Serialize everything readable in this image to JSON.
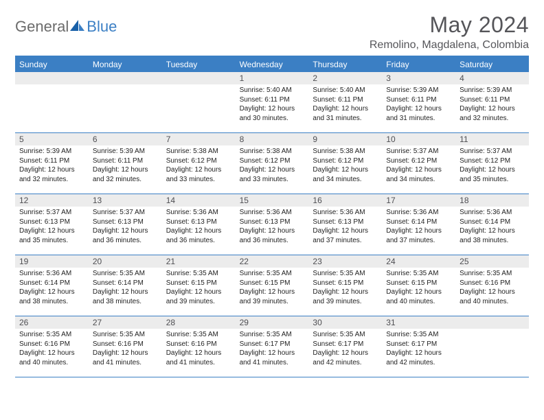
{
  "logo": {
    "text_general": "General",
    "text_blue": "Blue"
  },
  "title": "May 2024",
  "location": "Remolino, Magdalena, Colombia",
  "colors": {
    "accent": "#3b7fc4",
    "header_text": "#555559",
    "day_header_bg": "#ececec",
    "logo_gray": "#6b6b6b"
  },
  "weekdays": [
    "Sunday",
    "Monday",
    "Tuesday",
    "Wednesday",
    "Thursday",
    "Friday",
    "Saturday"
  ],
  "weeks": [
    [
      {
        "num": "",
        "sunrise": "",
        "sunset": "",
        "daylight": ""
      },
      {
        "num": "",
        "sunrise": "",
        "sunset": "",
        "daylight": ""
      },
      {
        "num": "",
        "sunrise": "",
        "sunset": "",
        "daylight": ""
      },
      {
        "num": "1",
        "sunrise": "Sunrise: 5:40 AM",
        "sunset": "Sunset: 6:11 PM",
        "daylight": "Daylight: 12 hours and 30 minutes."
      },
      {
        "num": "2",
        "sunrise": "Sunrise: 5:40 AM",
        "sunset": "Sunset: 6:11 PM",
        "daylight": "Daylight: 12 hours and 31 minutes."
      },
      {
        "num": "3",
        "sunrise": "Sunrise: 5:39 AM",
        "sunset": "Sunset: 6:11 PM",
        "daylight": "Daylight: 12 hours and 31 minutes."
      },
      {
        "num": "4",
        "sunrise": "Sunrise: 5:39 AM",
        "sunset": "Sunset: 6:11 PM",
        "daylight": "Daylight: 12 hours and 32 minutes."
      }
    ],
    [
      {
        "num": "5",
        "sunrise": "Sunrise: 5:39 AM",
        "sunset": "Sunset: 6:11 PM",
        "daylight": "Daylight: 12 hours and 32 minutes."
      },
      {
        "num": "6",
        "sunrise": "Sunrise: 5:39 AM",
        "sunset": "Sunset: 6:11 PM",
        "daylight": "Daylight: 12 hours and 32 minutes."
      },
      {
        "num": "7",
        "sunrise": "Sunrise: 5:38 AM",
        "sunset": "Sunset: 6:12 PM",
        "daylight": "Daylight: 12 hours and 33 minutes."
      },
      {
        "num": "8",
        "sunrise": "Sunrise: 5:38 AM",
        "sunset": "Sunset: 6:12 PM",
        "daylight": "Daylight: 12 hours and 33 minutes."
      },
      {
        "num": "9",
        "sunrise": "Sunrise: 5:38 AM",
        "sunset": "Sunset: 6:12 PM",
        "daylight": "Daylight: 12 hours and 34 minutes."
      },
      {
        "num": "10",
        "sunrise": "Sunrise: 5:37 AM",
        "sunset": "Sunset: 6:12 PM",
        "daylight": "Daylight: 12 hours and 34 minutes."
      },
      {
        "num": "11",
        "sunrise": "Sunrise: 5:37 AM",
        "sunset": "Sunset: 6:12 PM",
        "daylight": "Daylight: 12 hours and 35 minutes."
      }
    ],
    [
      {
        "num": "12",
        "sunrise": "Sunrise: 5:37 AM",
        "sunset": "Sunset: 6:13 PM",
        "daylight": "Daylight: 12 hours and 35 minutes."
      },
      {
        "num": "13",
        "sunrise": "Sunrise: 5:37 AM",
        "sunset": "Sunset: 6:13 PM",
        "daylight": "Daylight: 12 hours and 36 minutes."
      },
      {
        "num": "14",
        "sunrise": "Sunrise: 5:36 AM",
        "sunset": "Sunset: 6:13 PM",
        "daylight": "Daylight: 12 hours and 36 minutes."
      },
      {
        "num": "15",
        "sunrise": "Sunrise: 5:36 AM",
        "sunset": "Sunset: 6:13 PM",
        "daylight": "Daylight: 12 hours and 36 minutes."
      },
      {
        "num": "16",
        "sunrise": "Sunrise: 5:36 AM",
        "sunset": "Sunset: 6:13 PM",
        "daylight": "Daylight: 12 hours and 37 minutes."
      },
      {
        "num": "17",
        "sunrise": "Sunrise: 5:36 AM",
        "sunset": "Sunset: 6:14 PM",
        "daylight": "Daylight: 12 hours and 37 minutes."
      },
      {
        "num": "18",
        "sunrise": "Sunrise: 5:36 AM",
        "sunset": "Sunset: 6:14 PM",
        "daylight": "Daylight: 12 hours and 38 minutes."
      }
    ],
    [
      {
        "num": "19",
        "sunrise": "Sunrise: 5:36 AM",
        "sunset": "Sunset: 6:14 PM",
        "daylight": "Daylight: 12 hours and 38 minutes."
      },
      {
        "num": "20",
        "sunrise": "Sunrise: 5:35 AM",
        "sunset": "Sunset: 6:14 PM",
        "daylight": "Daylight: 12 hours and 38 minutes."
      },
      {
        "num": "21",
        "sunrise": "Sunrise: 5:35 AM",
        "sunset": "Sunset: 6:15 PM",
        "daylight": "Daylight: 12 hours and 39 minutes."
      },
      {
        "num": "22",
        "sunrise": "Sunrise: 5:35 AM",
        "sunset": "Sunset: 6:15 PM",
        "daylight": "Daylight: 12 hours and 39 minutes."
      },
      {
        "num": "23",
        "sunrise": "Sunrise: 5:35 AM",
        "sunset": "Sunset: 6:15 PM",
        "daylight": "Daylight: 12 hours and 39 minutes."
      },
      {
        "num": "24",
        "sunrise": "Sunrise: 5:35 AM",
        "sunset": "Sunset: 6:15 PM",
        "daylight": "Daylight: 12 hours and 40 minutes."
      },
      {
        "num": "25",
        "sunrise": "Sunrise: 5:35 AM",
        "sunset": "Sunset: 6:16 PM",
        "daylight": "Daylight: 12 hours and 40 minutes."
      }
    ],
    [
      {
        "num": "26",
        "sunrise": "Sunrise: 5:35 AM",
        "sunset": "Sunset: 6:16 PM",
        "daylight": "Daylight: 12 hours and 40 minutes."
      },
      {
        "num": "27",
        "sunrise": "Sunrise: 5:35 AM",
        "sunset": "Sunset: 6:16 PM",
        "daylight": "Daylight: 12 hours and 41 minutes."
      },
      {
        "num": "28",
        "sunrise": "Sunrise: 5:35 AM",
        "sunset": "Sunset: 6:16 PM",
        "daylight": "Daylight: 12 hours and 41 minutes."
      },
      {
        "num": "29",
        "sunrise": "Sunrise: 5:35 AM",
        "sunset": "Sunset: 6:17 PM",
        "daylight": "Daylight: 12 hours and 41 minutes."
      },
      {
        "num": "30",
        "sunrise": "Sunrise: 5:35 AM",
        "sunset": "Sunset: 6:17 PM",
        "daylight": "Daylight: 12 hours and 42 minutes."
      },
      {
        "num": "31",
        "sunrise": "Sunrise: 5:35 AM",
        "sunset": "Sunset: 6:17 PM",
        "daylight": "Daylight: 12 hours and 42 minutes."
      },
      {
        "num": "",
        "sunrise": "",
        "sunset": "",
        "daylight": ""
      }
    ]
  ]
}
